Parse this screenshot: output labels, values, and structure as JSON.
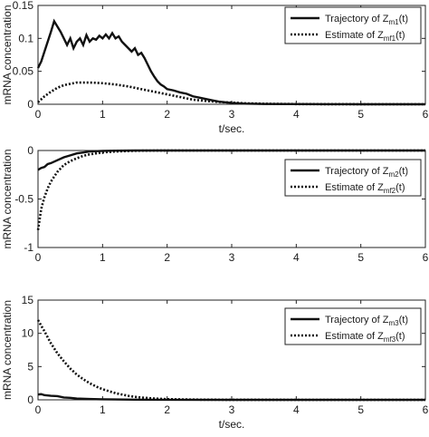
{
  "chart_data": [
    {
      "type": "line",
      "xlim": [
        0,
        6
      ],
      "ylim": [
        0,
        0.15
      ],
      "xticks": [
        "0",
        "1",
        "2",
        "3",
        "4",
        "5",
        "6"
      ],
      "yticks": [
        "0",
        "0.05",
        "0.1",
        "0.15"
      ],
      "xlabel": "t/sec.",
      "ylabel": "mRNA concentration",
      "legend_position": "top-right",
      "series": [
        {
          "name_main": "Trajectory of Z",
          "name_sub": "m1",
          "name_tail": "(t)",
          "style": "solid",
          "x": [
            0,
            0.05,
            0.1,
            0.15,
            0.2,
            0.25,
            0.3,
            0.35,
            0.4,
            0.45,
            0.5,
            0.55,
            0.6,
            0.65,
            0.7,
            0.75,
            0.8,
            0.85,
            0.9,
            0.95,
            1.0,
            1.05,
            1.1,
            1.15,
            1.2,
            1.25,
            1.3,
            1.35,
            1.4,
            1.45,
            1.5,
            1.55,
            1.6,
            1.65,
            1.7,
            1.75,
            1.8,
            1.85,
            1.9,
            1.95,
            2.0,
            2.1,
            2.2,
            2.3,
            2.4,
            2.5,
            2.6,
            2.7,
            2.8,
            3.0,
            3.2,
            3.5,
            4.0,
            4.5,
            5.0,
            5.5,
            6.0
          ],
          "y": [
            0.055,
            0.065,
            0.08,
            0.095,
            0.11,
            0.126,
            0.118,
            0.11,
            0.1,
            0.09,
            0.1,
            0.085,
            0.095,
            0.1,
            0.09,
            0.105,
            0.095,
            0.1,
            0.098,
            0.104,
            0.1,
            0.106,
            0.1,
            0.108,
            0.1,
            0.103,
            0.095,
            0.09,
            0.085,
            0.08,
            0.085,
            0.075,
            0.078,
            0.07,
            0.06,
            0.05,
            0.042,
            0.035,
            0.03,
            0.027,
            0.023,
            0.021,
            0.018,
            0.016,
            0.012,
            0.01,
            0.008,
            0.006,
            0.004,
            0.002,
            0.001,
            0.0005,
            0.0002,
            0.0001,
            0.0,
            0.0,
            0.0
          ]
        },
        {
          "name_main": "Estimate of Z",
          "name_sub": "mf1",
          "name_tail": "(t)",
          "style": "dotted",
          "x": [
            0,
            0.1,
            0.2,
            0.3,
            0.4,
            0.5,
            0.6,
            0.7,
            0.8,
            0.9,
            1.0,
            1.1,
            1.2,
            1.3,
            1.4,
            1.5,
            1.6,
            1.7,
            1.8,
            1.9,
            2.0,
            2.1,
            2.2,
            2.3,
            2.4,
            2.5,
            2.6,
            2.8,
            3.0,
            3.2,
            3.5,
            4.0,
            4.5,
            5.0,
            5.5,
            6.0
          ],
          "y": [
            0.003,
            0.012,
            0.019,
            0.025,
            0.029,
            0.031,
            0.033,
            0.033,
            0.033,
            0.0325,
            0.032,
            0.031,
            0.03,
            0.0285,
            0.027,
            0.025,
            0.023,
            0.021,
            0.019,
            0.017,
            0.015,
            0.013,
            0.011,
            0.009,
            0.007,
            0.006,
            0.005,
            0.0035,
            0.0025,
            0.0015,
            0.0008,
            0.0003,
            0.0001,
            0.0,
            0.0,
            0.0
          ]
        }
      ]
    },
    {
      "type": "line",
      "xlim": [
        0,
        6
      ],
      "ylim": [
        -1,
        0
      ],
      "xticks": [
        "0",
        "1",
        "2",
        "3",
        "4",
        "5",
        "6"
      ],
      "yticks": [
        "-1",
        "-0.5",
        "0"
      ],
      "xlabel": "t/sec.",
      "ylabel": "mRNA concentration",
      "legend_position": "top-right",
      "series": [
        {
          "name_main": "Trajectory of Z",
          "name_sub": "m2",
          "name_tail": "(t)",
          "style": "solid",
          "x": [
            0,
            0.05,
            0.1,
            0.15,
            0.2,
            0.3,
            0.4,
            0.5,
            0.6,
            0.7,
            0.8,
            1.0,
            1.2,
            1.5,
            2.0,
            3.0,
            4.0,
            5.0,
            6.0
          ],
          "y": [
            -0.2,
            -0.18,
            -0.17,
            -0.14,
            -0.13,
            -0.1,
            -0.07,
            -0.05,
            -0.03,
            -0.02,
            -0.01,
            -0.004,
            -0.002,
            0.0,
            0.0,
            0.0,
            0.0,
            0.0,
            0.0
          ]
        },
        {
          "name_main": "Estimate of Z",
          "name_sub": "mf2",
          "name_tail": "(t)",
          "style": "dotted",
          "x": [
            0,
            0.05,
            0.1,
            0.15,
            0.2,
            0.3,
            0.4,
            0.5,
            0.6,
            0.7,
            0.8,
            0.9,
            1.0,
            1.2,
            1.4,
            1.6,
            2.0,
            3.0,
            4.0,
            5.0,
            6.0
          ],
          "y": [
            -0.82,
            -0.6,
            -0.48,
            -0.39,
            -0.32,
            -0.22,
            -0.15,
            -0.11,
            -0.08,
            -0.055,
            -0.04,
            -0.03,
            -0.02,
            -0.01,
            -0.005,
            -0.002,
            0.0,
            0.0,
            0.0,
            0.0,
            0.0
          ]
        }
      ]
    },
    {
      "type": "line",
      "xlim": [
        0,
        6
      ],
      "ylim": [
        0,
        15
      ],
      "xticks": [
        "0",
        "1",
        "2",
        "3",
        "4",
        "5",
        "6"
      ],
      "yticks": [
        "0",
        "5",
        "10",
        "15"
      ],
      "xlabel": "t/sec.",
      "ylabel": "mRNA concentration",
      "legend_position": "top-right",
      "series": [
        {
          "name_main": "Trajectory of Z",
          "name_sub": "m3",
          "name_tail": "(t)",
          "style": "solid",
          "x": [
            0,
            0.05,
            0.1,
            0.2,
            0.3,
            0.4,
            0.5,
            0.6,
            0.8,
            1.0,
            1.5,
            2.0,
            3.0,
            4.0,
            5.0,
            6.0
          ],
          "y": [
            0.8,
            0.85,
            0.7,
            0.6,
            0.55,
            0.35,
            0.3,
            0.2,
            0.12,
            0.08,
            0.03,
            0.01,
            0.0,
            0.0,
            0.0,
            0.0
          ]
        },
        {
          "name_main": "Estimate of Z",
          "name_sub": "mf3",
          "name_tail": "(t)",
          "style": "dotted",
          "x": [
            0,
            0.1,
            0.2,
            0.3,
            0.4,
            0.5,
            0.6,
            0.7,
            0.8,
            0.9,
            1.0,
            1.1,
            1.2,
            1.3,
            1.4,
            1.5,
            1.6,
            1.8,
            2.0,
            2.5,
            3.0,
            4.0,
            5.0,
            6.0
          ],
          "y": [
            12.0,
            10.3,
            8.5,
            7.0,
            5.8,
            4.7,
            3.8,
            3.1,
            2.5,
            2.0,
            1.6,
            1.3,
            1.0,
            0.8,
            0.6,
            0.45,
            0.35,
            0.2,
            0.1,
            0.03,
            0.01,
            0.0,
            0.0,
            0.0
          ]
        }
      ]
    }
  ]
}
